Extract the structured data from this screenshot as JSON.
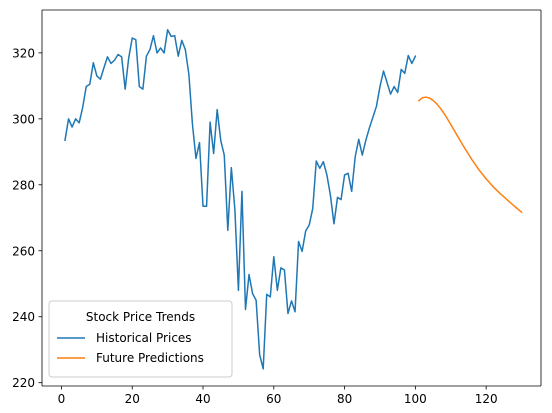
{
  "chart_data": {
    "type": "line",
    "title": "",
    "xlabel": "",
    "ylabel": "",
    "xlim": [
      -5.5,
      135.5
    ],
    "ylim": [
      219,
      333
    ],
    "x_ticks": [
      0,
      20,
      40,
      60,
      80,
      100,
      120
    ],
    "y_ticks": [
      220,
      240,
      260,
      280,
      300,
      320
    ],
    "grid": false,
    "legend": {
      "title": "Stock Price Trends",
      "placement": "lower-left"
    },
    "series": [
      {
        "name": "Historical Prices",
        "color": "#1f77b4",
        "x": [
          1,
          2,
          3,
          4,
          5,
          6,
          7,
          8,
          9,
          10,
          11,
          12,
          13,
          14,
          15,
          16,
          17,
          18,
          19,
          20,
          21,
          22,
          23,
          24,
          25,
          26,
          27,
          28,
          29,
          30,
          31,
          32,
          33,
          34,
          35,
          36,
          37,
          38,
          39,
          40,
          41,
          42,
          43,
          44,
          45,
          46,
          47,
          48,
          49,
          50,
          51,
          52,
          53,
          54,
          55,
          56,
          57,
          58,
          59,
          60,
          61,
          62,
          63,
          64,
          65,
          66,
          67,
          68,
          69,
          70,
          71,
          72,
          73,
          74,
          75,
          76,
          77,
          78,
          79,
          80,
          81,
          82,
          83,
          84,
          85,
          86,
          87,
          88,
          89,
          90,
          91,
          92,
          93,
          94,
          95,
          96,
          97,
          98,
          99,
          100
        ],
        "values": [
          293.5,
          300.0,
          297.5,
          300.0,
          298.8,
          303.5,
          309.8,
          310.5,
          317.0,
          313.0,
          312.0,
          315.5,
          318.8,
          316.8,
          317.8,
          319.5,
          318.8,
          309.0,
          318.5,
          324.5,
          324.0,
          309.8,
          309.0,
          319.0,
          321.0,
          325.2,
          320.0,
          321.5,
          320.0,
          327.0,
          325.0,
          325.2,
          319.0,
          323.8,
          321.0,
          313.5,
          298.5,
          288.0,
          292.8,
          273.5,
          273.5,
          299.0,
          289.5,
          302.8,
          293.5,
          289.0,
          266.2,
          285.2,
          272.5,
          248.0,
          278.0,
          242.2,
          252.8,
          247.0,
          245.0,
          228.5,
          224.2,
          246.8,
          246.0,
          258.2,
          248.0,
          254.8,
          254.2,
          241.0,
          244.8,
          241.5,
          262.8,
          259.8,
          266.0,
          267.8,
          272.8,
          287.2,
          285.0,
          287.0,
          283.0,
          276.8,
          268.2,
          276.2,
          275.5,
          283.0,
          283.5,
          278.0,
          288.5,
          293.8,
          289.0,
          293.5,
          297.2,
          300.5,
          303.8,
          309.8,
          314.5,
          311.0,
          307.5,
          309.8,
          308.0,
          315.0,
          313.8,
          319.2,
          316.8,
          319.0
        ]
      },
      {
        "name": "Future Predictions",
        "color": "#ff7f0e",
        "x": [
          101,
          102,
          103,
          104,
          105,
          106,
          107,
          108,
          109,
          110,
          112,
          114,
          116,
          118,
          120,
          122,
          124,
          126,
          128,
          130
        ],
        "values": [
          305.5,
          306.4,
          306.6,
          306.3,
          305.6,
          304.6,
          303.3,
          301.8,
          300.1,
          298.3,
          294.6,
          291.0,
          287.6,
          284.5,
          281.8,
          279.4,
          277.3,
          275.4,
          273.5,
          271.7
        ]
      }
    ]
  }
}
